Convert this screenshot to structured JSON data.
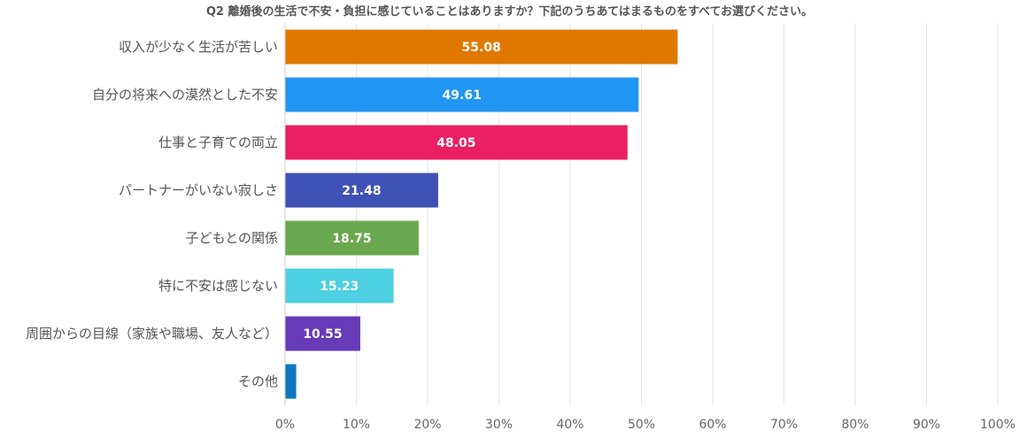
{
  "chart_data": {
    "type": "bar",
    "orientation": "horizontal",
    "title": "Q2 離婚後の生活で不安・負担に感じていることはありますか？下記のうちあてはまるものをすべてお選びください。",
    "categories": [
      "収入が少なく生活が苦しい",
      "自分の将来への漠然とした不安",
      "仕事と子育ての両立",
      "パートナーがいない寂しさ",
      "子どもとの関係",
      "特に不安は感じない",
      "周囲からの目線（家族や職場、友人など）",
      "その他"
    ],
    "values": [
      55.08,
      49.61,
      48.05,
      21.48,
      18.75,
      15.23,
      10.55,
      1.56
    ],
    "data_labels": [
      "55.08",
      "49.61",
      "48.05",
      "21.48",
      "18.75",
      "15.23",
      "10.55",
      ""
    ],
    "colors": [
      "#E07800",
      "#2196F3",
      "#E91E63",
      "#3F51B5",
      "#6AA84F",
      "#4DD0E1",
      "#673AB7",
      "#0B78BE"
    ],
    "xlim": [
      0,
      100
    ],
    "x_ticks": [
      "0%",
      "10%",
      "20%",
      "30%",
      "40%",
      "50%",
      "60%",
      "70%",
      "80%",
      "90%",
      "100%"
    ],
    "grid": true,
    "legend": "none"
  }
}
